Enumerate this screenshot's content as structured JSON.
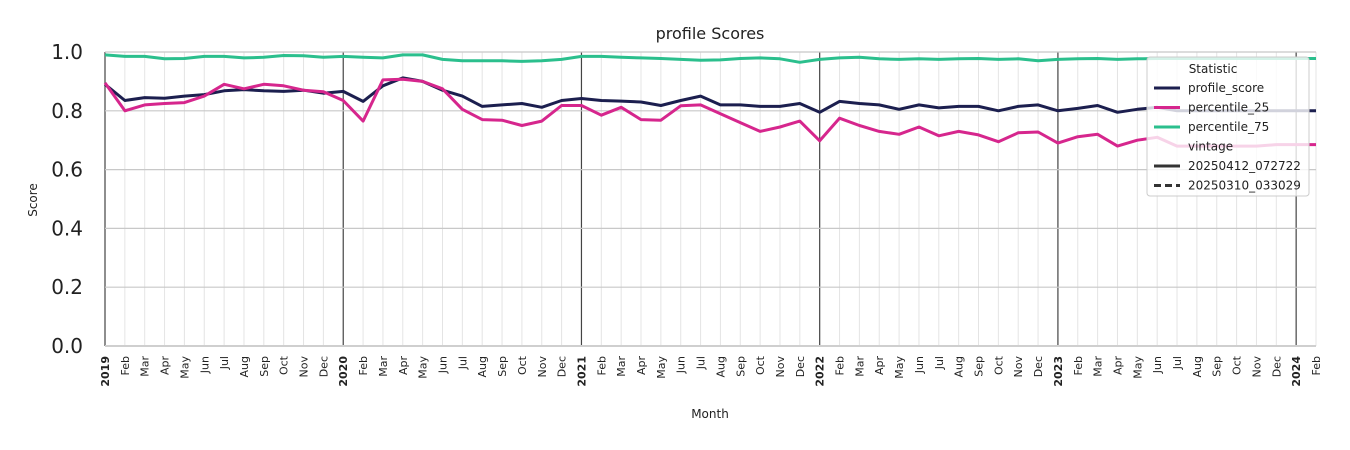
{
  "chart_data": {
    "type": "line",
    "title": "profile Scores",
    "xlabel": "Month",
    "ylabel": "Score",
    "ylim": [
      0.0,
      1.0
    ],
    "yticks": [
      "0.0",
      "0.2",
      "0.4",
      "0.6",
      "0.8",
      "1.0"
    ],
    "ytick_values": [
      0.0,
      0.2,
      0.4,
      0.6,
      0.8,
      1.0
    ],
    "x_tick_labels": [
      "2019",
      "Feb",
      "Mar",
      "Apr",
      "May",
      "Jun",
      "Jul",
      "Aug",
      "Sep",
      "Oct",
      "Nov",
      "Dec",
      "2020",
      "Feb",
      "Mar",
      "Apr",
      "May",
      "Jun",
      "Jul",
      "Aug",
      "Sep",
      "Oct",
      "Nov",
      "Dec",
      "2021",
      "Feb",
      "Mar",
      "Apr",
      "May",
      "Jun",
      "Jul",
      "Aug",
      "Sep",
      "Oct",
      "Nov",
      "Dec",
      "2022",
      "Feb",
      "Mar",
      "Apr",
      "May",
      "Jun",
      "Jul",
      "Aug",
      "Sep",
      "Oct",
      "Nov",
      "Dec",
      "2023",
      "Feb",
      "Mar",
      "Apr",
      "May",
      "Jun",
      "Jul",
      "Aug",
      "Sep",
      "Oct",
      "Nov",
      "Dec",
      "2024",
      "Feb"
    ],
    "year_boundaries": [
      "2019",
      "2020",
      "2021",
      "2022",
      "2023",
      "2024"
    ],
    "grid": true,
    "legend": {
      "placement": "top-right",
      "title": "Statistic",
      "entries": [
        {
          "label": "profile_score",
          "color": "#1c1f4f",
          "style": "solid"
        },
        {
          "label": "percentile_25",
          "color": "#d6268d",
          "style": "solid"
        },
        {
          "label": "percentile_75",
          "color": "#2bbf8d",
          "style": "solid"
        },
        {
          "label": "vintage",
          "color": "",
          "style": "header"
        },
        {
          "label": "20250412_072722",
          "color": "#333333",
          "style": "solid"
        },
        {
          "label": "20250310_033029",
          "color": "#333333",
          "style": "dashed"
        }
      ]
    },
    "series": [
      {
        "name": "profile_score",
        "color": "#1c1f4f",
        "values": [
          0.89,
          0.835,
          0.845,
          0.843,
          0.85,
          0.855,
          0.868,
          0.872,
          0.868,
          0.866,
          0.87,
          0.86,
          0.866,
          0.832,
          0.885,
          0.912,
          0.9,
          0.87,
          0.85,
          0.815,
          0.82,
          0.825,
          0.812,
          0.835,
          0.842,
          0.835,
          0.833,
          0.83,
          0.818,
          0.835,
          0.85,
          0.82,
          0.82,
          0.815,
          0.815,
          0.825,
          0.795,
          0.832,
          0.825,
          0.82,
          0.805,
          0.82,
          0.81,
          0.815,
          0.815,
          0.8,
          0.815,
          0.82,
          0.8,
          0.808,
          0.818,
          0.795,
          0.805,
          0.812,
          0.8,
          0.8,
          0.8,
          0.8,
          0.8,
          0.8,
          0.8,
          0.8
        ]
      },
      {
        "name": "percentile_25",
        "color": "#d6268d",
        "values": [
          0.895,
          0.8,
          0.82,
          0.825,
          0.828,
          0.85,
          0.89,
          0.875,
          0.89,
          0.885,
          0.87,
          0.865,
          0.835,
          0.765,
          0.905,
          0.907,
          0.9,
          0.875,
          0.805,
          0.77,
          0.768,
          0.75,
          0.765,
          0.818,
          0.818,
          0.785,
          0.812,
          0.77,
          0.768,
          0.817,
          0.82,
          0.79,
          0.76,
          0.73,
          0.745,
          0.765,
          0.698,
          0.775,
          0.75,
          0.73,
          0.72,
          0.745,
          0.715,
          0.73,
          0.718,
          0.695,
          0.725,
          0.728,
          0.69,
          0.712,
          0.72,
          0.68,
          0.7,
          0.71,
          0.68,
          0.68,
          0.68,
          0.68,
          0.68,
          0.685,
          0.685,
          0.685
        ]
      },
      {
        "name": "percentile_75",
        "color": "#2bbf8d",
        "values": [
          0.99,
          0.985,
          0.985,
          0.977,
          0.978,
          0.985,
          0.985,
          0.98,
          0.982,
          0.988,
          0.987,
          0.982,
          0.985,
          0.982,
          0.98,
          0.99,
          0.99,
          0.975,
          0.97,
          0.97,
          0.97,
          0.968,
          0.97,
          0.975,
          0.985,
          0.985,
          0.982,
          0.98,
          0.978,
          0.975,
          0.972,
          0.973,
          0.978,
          0.98,
          0.977,
          0.965,
          0.975,
          0.98,
          0.982,
          0.977,
          0.975,
          0.977,
          0.975,
          0.977,
          0.978,
          0.975,
          0.977,
          0.97,
          0.975,
          0.977,
          0.978,
          0.975,
          0.977,
          0.978,
          0.978,
          0.978,
          0.978,
          0.978,
          0.978,
          0.978,
          0.978,
          0.978
        ]
      }
    ]
  }
}
